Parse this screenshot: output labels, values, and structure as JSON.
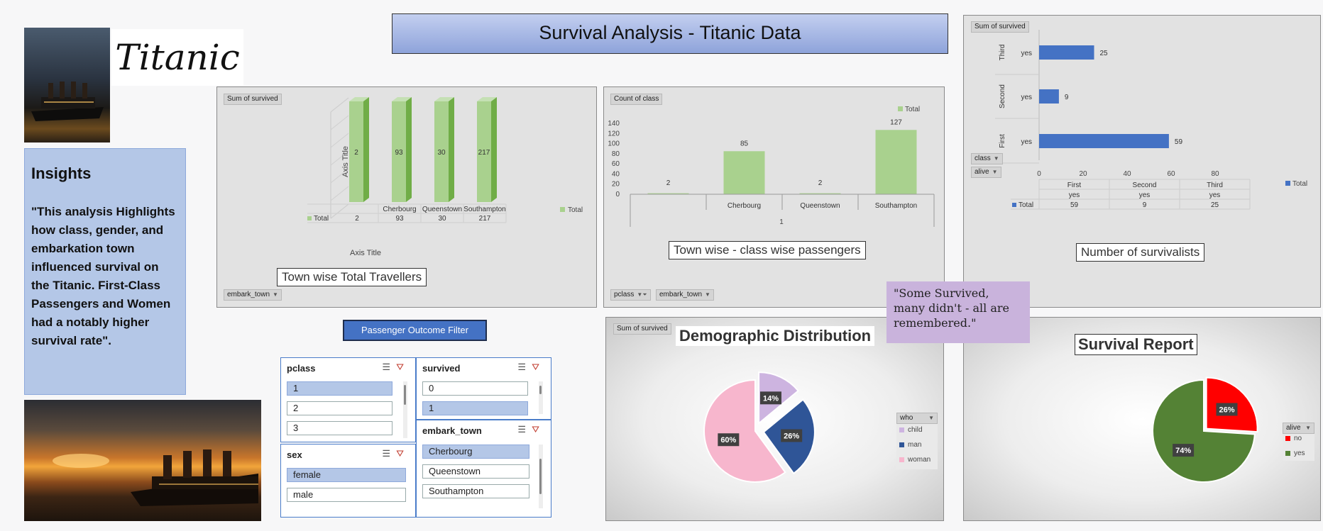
{
  "title": "Survival Analysis - Titanic Data",
  "logo_text": "Titanic",
  "insights": {
    "heading": "Insights",
    "text": "\"This analysis Highlights how class, gender, and embarkation town influenced survival on the Titanic. First-Class Passengers and Women had a notably higher survival rate\"."
  },
  "quote": "\"Some Survived, many didn't - all are remembered.\"",
  "filter_button": "Passenger Outcome Filter",
  "town_travellers": {
    "value_label": "Sum of survived",
    "filter_label": "embark_town",
    "caption": "Town wise Total Travellers",
    "axis_title_x": "Axis Title",
    "axis_title_y": "Axis Title",
    "legend": "Total",
    "table_row_label": "Total"
  },
  "town_class": {
    "value_label": "Count of class",
    "filter_pclass": "pclass",
    "filter_town": "embark_town",
    "caption": "Town wise - class wise passengers",
    "legend": "Total",
    "group_label": "1"
  },
  "survivalists": {
    "value_label": "Sum of survived",
    "filter_class": "class",
    "filter_alive": "alive",
    "caption": "Number of survivalists",
    "legend": "Total",
    "table_row_label": "Total"
  },
  "demographic": {
    "value_label": "Sum of survived",
    "title": "Demographic Distribution",
    "legend_field": "who"
  },
  "survival_report": {
    "title": "Survival Report",
    "legend_field": "alive"
  },
  "slicers": {
    "pclass": {
      "header": "pclass",
      "items": [
        "1",
        "2",
        "3"
      ]
    },
    "survived": {
      "header": "survived",
      "items": [
        "0",
        "1"
      ]
    },
    "sex": {
      "header": "sex",
      "items": [
        "female",
        "male"
      ]
    },
    "embark_town": {
      "header": "embark_town",
      "items": [
        "Cherbourg",
        "Queenstown",
        "Southampton"
      ]
    }
  },
  "colors": {
    "green": "#a9d18e",
    "blue": "#4472c4",
    "child": "#cdb4e0",
    "man": "#2f5597",
    "woman": "#f7b6cd",
    "no": "#ff0000",
    "yes": "#548235"
  },
  "chart_data": [
    {
      "type": "bar",
      "id": "town_travellers",
      "categories": [
        "",
        "Cherbourg",
        "Queenstown",
        "Southampton"
      ],
      "series": [
        {
          "name": "Total",
          "values": [
            2,
            93,
            30,
            217
          ]
        }
      ],
      "xlabel": "Axis Title",
      "ylabel": "Axis Title",
      "legend": "right"
    },
    {
      "type": "bar",
      "id": "town_class",
      "categories": [
        "",
        "Cherbourg",
        "Queenstown",
        "Southampton"
      ],
      "group": "1",
      "series": [
        {
          "name": "Total",
          "values": [
            2,
            85,
            2,
            127
          ]
        }
      ],
      "ylim": [
        0,
        140
      ],
      "yticks": [
        0,
        20,
        40,
        60,
        80,
        100,
        120,
        140
      ],
      "legend": "top-right"
    },
    {
      "type": "bar",
      "orientation": "horizontal",
      "id": "survivalists",
      "categories": [
        "First",
        "Second",
        "Third"
      ],
      "subcategories": [
        "yes",
        "yes",
        "yes"
      ],
      "series": [
        {
          "name": "Total",
          "values": [
            59,
            9,
            25
          ]
        }
      ],
      "xlim": [
        0,
        80
      ],
      "xticks": [
        0,
        20,
        40,
        60,
        80
      ],
      "legend": "right"
    },
    {
      "type": "pie",
      "id": "demographic",
      "labels": [
        "child",
        "man",
        "woman"
      ],
      "values": [
        14,
        26,
        60
      ],
      "legend": "right"
    },
    {
      "type": "pie",
      "id": "survival_report",
      "labels": [
        "no",
        "yes"
      ],
      "values": [
        26,
        74
      ],
      "legend": "right"
    }
  ]
}
